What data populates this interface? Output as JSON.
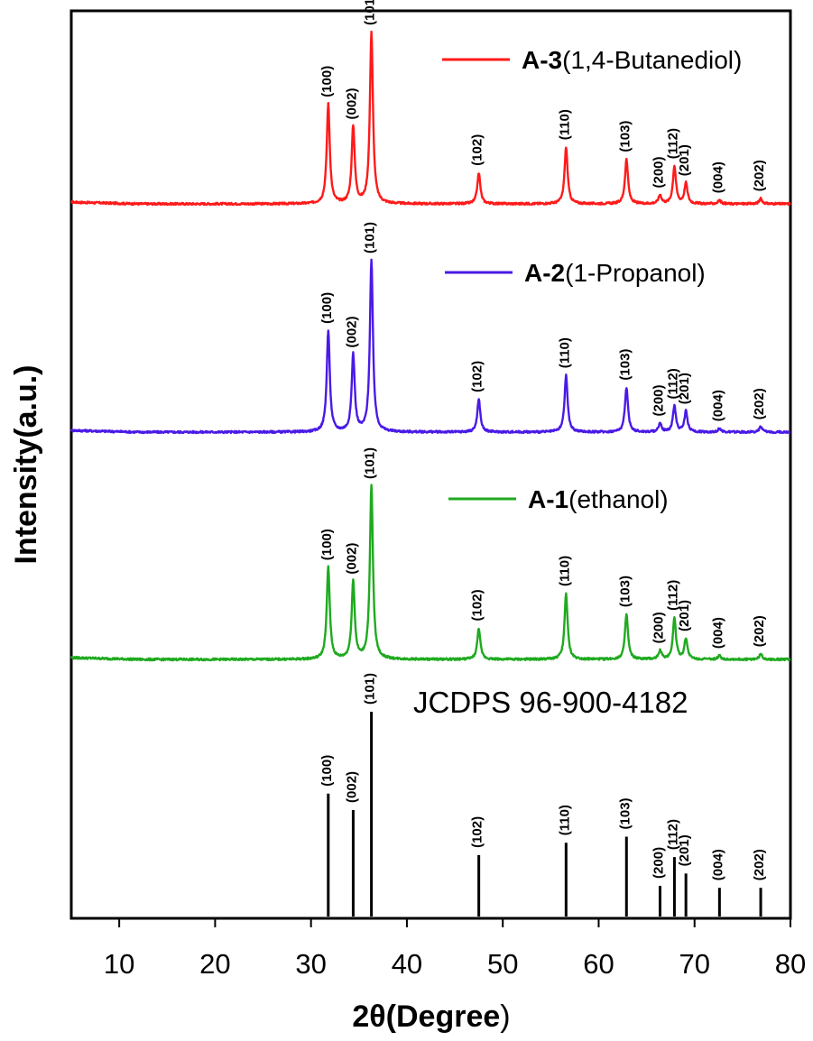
{
  "chart_data": {
    "type": "line",
    "xlabel_bold": "2θ(Degree",
    "xlabel_close": ")",
    "ylabel": "Intensity(a.u.)",
    "xlim": [
      5,
      80
    ],
    "xticks": [
      10,
      20,
      30,
      40,
      50,
      60,
      70,
      80
    ],
    "grid": false,
    "peak_positions": [
      31.8,
      34.4,
      36.3,
      47.5,
      56.6,
      62.9,
      66.4,
      67.9,
      69.1,
      72.6,
      76.9
    ],
    "hkl": [
      "(100)",
      "(002)",
      "(101)",
      "(102)",
      "(110)",
      "(103)",
      "(200)",
      "(112)",
      "(201)",
      "(004)",
      "(202)"
    ],
    "series": [
      {
        "legend_bold": "A-3",
        "legend_rest": "(1,4-Butanediol)",
        "color": "#ff1a1a",
        "intensities": [
          0.58,
          0.45,
          1.0,
          0.18,
          0.33,
          0.26,
          0.05,
          0.22,
          0.12,
          0.02,
          0.03
        ]
      },
      {
        "legend_bold": "A-2",
        "legend_rest": "(1-Propanol)",
        "color": "#4a1ae6",
        "intensities": [
          0.59,
          0.45,
          1.0,
          0.19,
          0.33,
          0.26,
          0.05,
          0.15,
          0.12,
          0.02,
          0.03
        ]
      },
      {
        "legend_bold": "A-1",
        "legend_rest": "(ethanol)",
        "color": "#1faa1f",
        "intensities": [
          0.53,
          0.45,
          1.0,
          0.18,
          0.38,
          0.26,
          0.05,
          0.24,
          0.12,
          0.02,
          0.03
        ]
      }
    ],
    "reference": {
      "title": "JCDPS 96-900-4182",
      "color": "#000000",
      "intensities": [
        0.6,
        0.52,
        1.0,
        0.3,
        0.36,
        0.39,
        0.15,
        0.29,
        0.21,
        0.14,
        0.14
      ]
    }
  }
}
